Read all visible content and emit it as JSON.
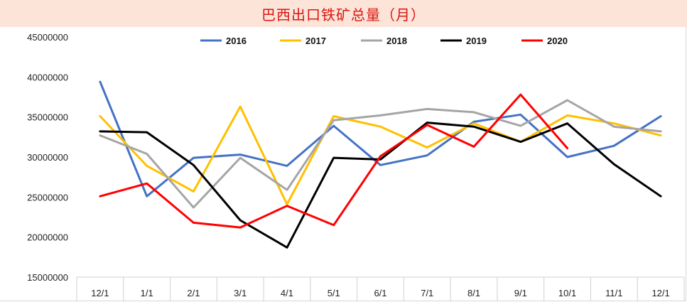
{
  "chart_data": {
    "type": "line",
    "title": "巴西出口铁矿总量（月）",
    "categories": [
      "12/1",
      "1/1",
      "2/1",
      "3/1",
      "4/1",
      "5/1",
      "6/1",
      "7/1",
      "8/1",
      "9/1",
      "10/1",
      "11/1",
      "12/1"
    ],
    "ylim": [
      15000000,
      45000000
    ],
    "yticks": [
      "15000000",
      "20000000",
      "25000000",
      "30000000",
      "35000000",
      "40000000",
      "45000000"
    ],
    "legend_position": "top",
    "grid": false,
    "series": [
      {
        "name": "2016",
        "color": "#4472c4",
        "values": [
          39400000,
          25100000,
          29900000,
          30300000,
          28900000,
          33900000,
          29000000,
          30200000,
          34400000,
          35300000,
          30000000,
          31400000,
          35100000
        ]
      },
      {
        "name": "2017",
        "color": "#ffc000",
        "values": [
          35100000,
          28900000,
          25700000,
          36300000,
          24100000,
          35100000,
          33800000,
          31200000,
          34200000,
          31900000,
          35200000,
          34200000,
          32700000
        ]
      },
      {
        "name": "2018",
        "color": "#a5a5a5",
        "values": [
          32700000,
          30400000,
          23700000,
          29900000,
          25900000,
          34600000,
          35200000,
          36000000,
          35600000,
          33900000,
          37100000,
          33800000,
          33200000
        ]
      },
      {
        "name": "2019",
        "color": "#000000",
        "values": [
          33200000,
          33100000,
          29000000,
          22100000,
          18700000,
          29900000,
          29700000,
          34300000,
          33800000,
          31900000,
          34200000,
          29100000,
          25100000
        ]
      },
      {
        "name": "2020",
        "color": "#ff0000",
        "values": [
          25100000,
          26700000,
          21800000,
          21200000,
          23900000,
          21500000,
          30100000,
          34000000,
          31300000,
          37800000,
          31100000,
          null,
          null
        ]
      }
    ]
  }
}
